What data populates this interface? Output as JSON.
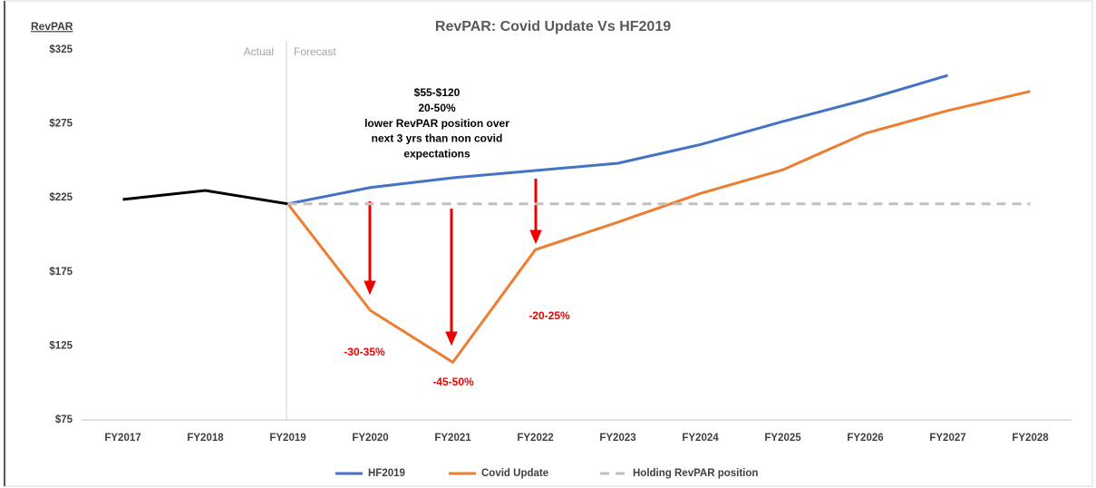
{
  "chart_data": {
    "type": "line",
    "title": "RevPAR: Covid Update Vs HF2019",
    "y_label": "RevPAR",
    "period_labels": [
      "Actual",
      "Forecast"
    ],
    "categories": [
      "FY2017",
      "FY2018",
      "FY2019",
      "FY2020",
      "FY2021",
      "FY2022",
      "FY2023",
      "FY2024",
      "FY2025",
      "FY2026",
      "FY2027",
      "FY2028"
    ],
    "series": [
      {
        "color": "#000000",
        "values": [
          224,
          230,
          221,
          null,
          null,
          null,
          null,
          null,
          null,
          null,
          null,
          null
        ]
      },
      {
        "name": "HF2019",
        "color": "#4472c4",
        "values": [
          null,
          null,
          221,
          232,
          238.6,
          243.5,
          248.4,
          261,
          276.6,
          291.3,
          307.8,
          null
        ]
      },
      {
        "name": "Covid Update",
        "color": "#ed7d31",
        "values": [
          null,
          null,
          221,
          149,
          114,
          190,
          208.6,
          228,
          244,
          268.6,
          284,
          297
        ]
      },
      {
        "name": "Holding RevPAR position",
        "color": "#bfbfbf",
        "dashed": true,
        "values": [
          null,
          null,
          221,
          221,
          221,
          221,
          221,
          221,
          221,
          221,
          221,
          221
        ]
      }
    ],
    "ylim": [
      75,
      325
    ],
    "yticks": [
      {
        "value": 75,
        "label": "$75"
      },
      {
        "value": 125,
        "label": "$125"
      },
      {
        "value": 175,
        "label": "$175"
      },
      {
        "value": 225,
        "label": "$225"
      },
      {
        "value": 275,
        "label": "$275"
      },
      {
        "value": 325,
        "label": "$325"
      }
    ],
    "annotations": [
      {
        "lines": [
          "$55-$120",
          "20-50%",
          "lower RevPAR position over",
          "next 3 yrs than non covid",
          "expectations"
        ]
      },
      {
        "text": "-30-35%"
      },
      {
        "text": "-45-50%"
      },
      {
        "text": "-20-25%"
      }
    ],
    "legend": "bottom"
  }
}
